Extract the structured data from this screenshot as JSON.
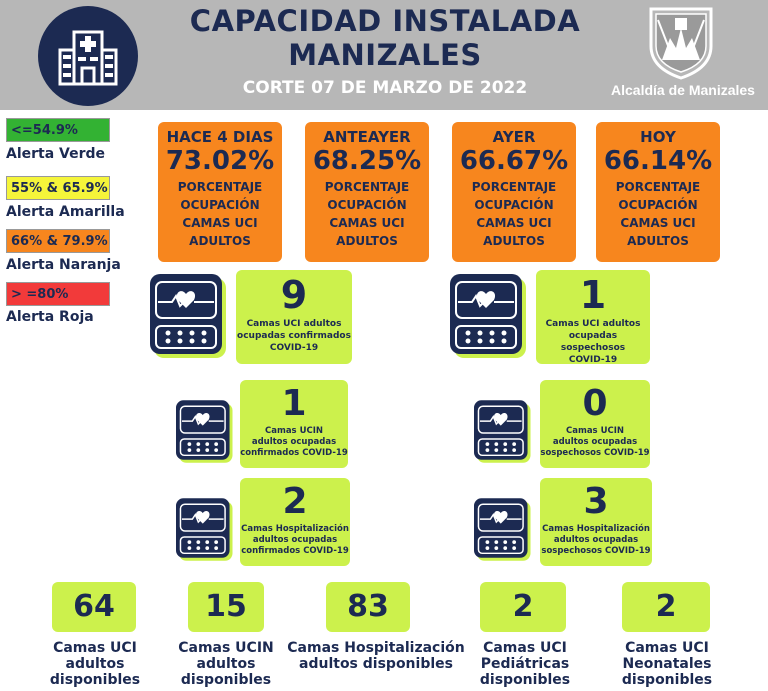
{
  "header": {
    "title_line1": "CAPACIDAD INSTALADA",
    "title_line2": "MANIZALES",
    "subtitle": "CORTE 07 DE MARZO DE 2022",
    "org": "Alcaldía de Manizales",
    "background": "#b7b7b7",
    "hospital_icon": "hospital-building-icon",
    "seal_icon": "manizales-coat-of-arms-icon"
  },
  "legend": [
    {
      "range": "<=54.9%",
      "label": "Alerta Verde",
      "color": "#33b233"
    },
    {
      "range": "55% & 65.9%",
      "label": "Alerta Amarilla",
      "color": "#f5f53a"
    },
    {
      "range": "66% & 79.9%",
      "label": "Alerta Naranja",
      "color": "#f7861e"
    },
    {
      "range": "> =80%",
      "label": "Alerta Roja",
      "color": "#f23a3a"
    }
  ],
  "occupancy": [
    {
      "period": "HACE 4 DIAS",
      "value": "73.02%",
      "desc": [
        "PORCENTAJE",
        "OCUPACIÓN",
        "CAMAS UCI",
        "ADULTOS"
      ]
    },
    {
      "period": "ANTEAYER",
      "value": "68.25%",
      "desc": [
        "PORCENTAJE",
        "OCUPACIÓN",
        "CAMAS UCI",
        "ADULTOS"
      ]
    },
    {
      "period": "AYER",
      "value": "66.67%",
      "desc": [
        "PORCENTAJE",
        "OCUPACIÓN",
        "CAMAS UCI",
        "ADULTOS"
      ]
    },
    {
      "period": "HOY",
      "value": "66.14%",
      "desc": [
        "PORCENTAJE",
        "OCUPACIÓN",
        "CAMAS UCI",
        "ADULTOS"
      ]
    }
  ],
  "occupied": {
    "confirmed": [
      {
        "value": "9",
        "desc": [
          "Camas UCI adultos",
          "ocupadas confirmados",
          "COVID-19"
        ]
      },
      {
        "value": "1",
        "desc": [
          "Camas  UCIN",
          "adultos ocupadas",
          "confirmados COVID-19"
        ]
      },
      {
        "value": "2",
        "desc": [
          "Camas  Hospitalización",
          "adultos ocupadas",
          "confirmados COVID-19"
        ]
      }
    ],
    "suspected": [
      {
        "value": "1",
        "desc": [
          "Camas UCI adultos",
          "ocupadas sospechosos",
          "COVID-19"
        ]
      },
      {
        "value": "0",
        "desc": [
          "Camas  UCIN",
          "adultos ocupadas",
          "sospechosos COVID-19"
        ]
      },
      {
        "value": "3",
        "desc": [
          "Camas  Hospitalización",
          "adultos ocupadas",
          "sospechosos COVID-19"
        ]
      }
    ],
    "icon": "heart-monitor-icon"
  },
  "available": [
    {
      "value": "64",
      "label": [
        "Camas UCI",
        "adultos",
        "disponibles"
      ]
    },
    {
      "value": "15",
      "label": [
        "Camas UCIN",
        "adultos",
        "disponibles"
      ]
    },
    {
      "value": "83",
      "label": [
        "Camas  Hospitalización",
        "adultos disponibles"
      ]
    },
    {
      "value": "2",
      "label": [
        "Camas  UCI",
        "Pediátricas",
        "disponibles"
      ]
    },
    {
      "value": "2",
      "label": [
        "Camas  UCI",
        "Neonatales",
        "disponibles"
      ]
    }
  ],
  "colors": {
    "navy": "#1c2a52",
    "orange": "#f7861e",
    "lime": "#ccf14c"
  }
}
